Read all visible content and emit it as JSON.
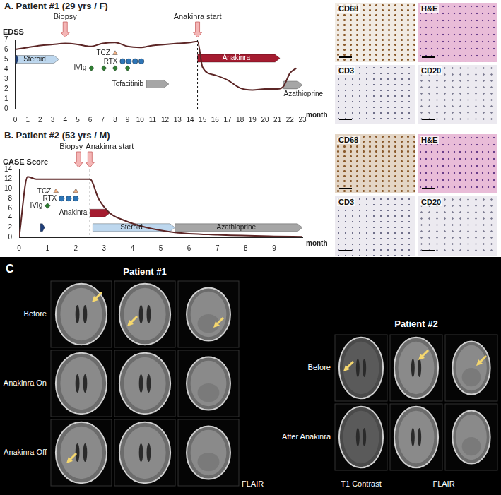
{
  "chart_data": [
    {
      "type": "line",
      "title": "A. Patient #1 (29 yrs / F)",
      "y_label": "EDSS",
      "x_label": "month",
      "x": [
        0,
        1,
        2,
        3,
        4,
        5,
        6,
        7,
        8,
        9,
        10,
        11,
        12,
        13,
        14,
        14.6,
        15,
        16,
        17,
        18,
        19,
        20,
        21,
        21.5,
        22,
        22.5
      ],
      "values": [
        6.0,
        6.2,
        6.4,
        6.5,
        6.6,
        6.5,
        6.3,
        6.6,
        6.7,
        6.3,
        6.2,
        6.4,
        6.5,
        6.6,
        6.7,
        6.8,
        4.2,
        3.4,
        2.9,
        2.1,
        1.9,
        2.0,
        2.0,
        2.3,
        3.6,
        4.1
      ],
      "color": "#5c2626",
      "xlim": [
        0,
        23
      ],
      "xticks": [
        0,
        1,
        2,
        3,
        4,
        5,
        6,
        7,
        8,
        9,
        10,
        11,
        12,
        13,
        14,
        15,
        16,
        17,
        18,
        19,
        20,
        21,
        22,
        23
      ],
      "ylim": [
        0,
        7
      ],
      "yticks": [
        0,
        1,
        2,
        3,
        4,
        5,
        6,
        7
      ],
      "grid": false,
      "annotations": [
        {
          "text": "Biopsy",
          "x": 4
        },
        {
          "text": "Anakinra start",
          "x": 14.6,
          "line_style": "dashed"
        }
      ],
      "treatments": [
        {
          "name": "Steroid",
          "start": 0,
          "end": 3.5,
          "y": 5,
          "color": "#bdd7ee"
        },
        {
          "name": null,
          "start": 0,
          "end": 0.25,
          "y": 5,
          "color": "#1f3f7a"
        },
        {
          "name": "Tofacitinib",
          "start": 10.5,
          "end": 12.3,
          "y": 2.5,
          "color": "#a6a6a6"
        },
        {
          "name": "Anakinra",
          "start": 14.6,
          "end": 21.2,
          "y": 5.1,
          "color": "#a51c30"
        },
        {
          "name": "Azathioprine",
          "start": 21.5,
          "end": 23,
          "y": 2.4,
          "color": "#a6a6a6"
        }
      ],
      "doses": [
        {
          "name": "TCZ",
          "x": [
            8
          ],
          "y": 5.6,
          "marker": "triangle",
          "color": "#f4b183"
        },
        {
          "name": "RTX",
          "x": [
            8.6,
            9.1,
            9.6,
            10.1
          ],
          "y": 4.8,
          "marker": "circle",
          "color": "#2e75b6"
        },
        {
          "name": "IVIg",
          "x": [
            6.1,
            7.1,
            8,
            9
          ],
          "y": 4.1,
          "marker": "diamond",
          "color": "#2e7d32"
        }
      ]
    },
    {
      "type": "line",
      "title": "B. Patient #2 (53 yrs / M)",
      "y_label": "CASE Score",
      "x_label": "month",
      "x": [
        0,
        0.3,
        0.6,
        1,
        1.5,
        2,
        2.5,
        2.8,
        3.2,
        3.7,
        4.5,
        5.5,
        7,
        9,
        10
      ],
      "values": [
        0,
        12.5,
        12,
        12,
        12,
        12,
        12,
        8,
        5,
        3.5,
        2,
        1,
        0.5,
        0.2,
        0.1
      ],
      "color": "#5c2626",
      "xlim": [
        0,
        10
      ],
      "xticks": [
        0,
        1,
        2,
        3,
        4,
        5,
        6,
        7,
        8,
        9
      ],
      "ylim": [
        0,
        14
      ],
      "yticks": [
        0,
        2,
        4,
        6,
        8,
        10,
        12,
        14
      ],
      "grid": false,
      "annotations": [
        {
          "text": "Biopsy",
          "x": 2.1
        },
        {
          "text": "Anakinra start",
          "x": 2.5,
          "line_style": "dashed"
        }
      ],
      "treatments": [
        {
          "name": null,
          "start": 0.75,
          "end": 0.9,
          "y": 2,
          "color": "#1f3f7a"
        },
        {
          "name": "Anakinra",
          "start": 2.5,
          "end": 3.2,
          "y": 5,
          "color": "#a51c30"
        },
        {
          "name": "Steroid",
          "start": 2.6,
          "end": 5.5,
          "y": 2,
          "color": "#bdd7ee"
        },
        {
          "name": "Azathioprine",
          "start": 5.5,
          "end": 10,
          "y": 2,
          "color": "#a6a6a6"
        }
      ],
      "doses": [
        {
          "name": "TCZ",
          "x": [
            1.3,
            2.0
          ],
          "y": 9.5,
          "marker": "triangle",
          "color": "#f4b183"
        },
        {
          "name": "RTX",
          "x": [
            1.5,
            1.75,
            2.0
          ],
          "y": 8,
          "marker": "circle",
          "color": "#2e75b6"
        },
        {
          "name": "IVIg",
          "x": [
            1.0
          ],
          "y": 6.5,
          "marker": "diamond",
          "color": "#2e7d32"
        }
      ]
    }
  ],
  "histology": [
    [
      "CD68",
      "H&E",
      "CD3",
      "CD20"
    ],
    [
      "CD68",
      "H&E",
      "CD3",
      "CD20"
    ]
  ],
  "mri": {
    "label": "C",
    "patients": [
      {
        "title": "Patient #1",
        "rows": [
          "Before",
          "Anakinra On",
          "Anakinra Off"
        ],
        "sequences": [
          "FLAIR"
        ]
      },
      {
        "title": "Patient #2",
        "rows": [
          "Before",
          "After Anakinra"
        ],
        "sequences": [
          "T1 Contrast",
          "FLAIR"
        ]
      }
    ]
  }
}
